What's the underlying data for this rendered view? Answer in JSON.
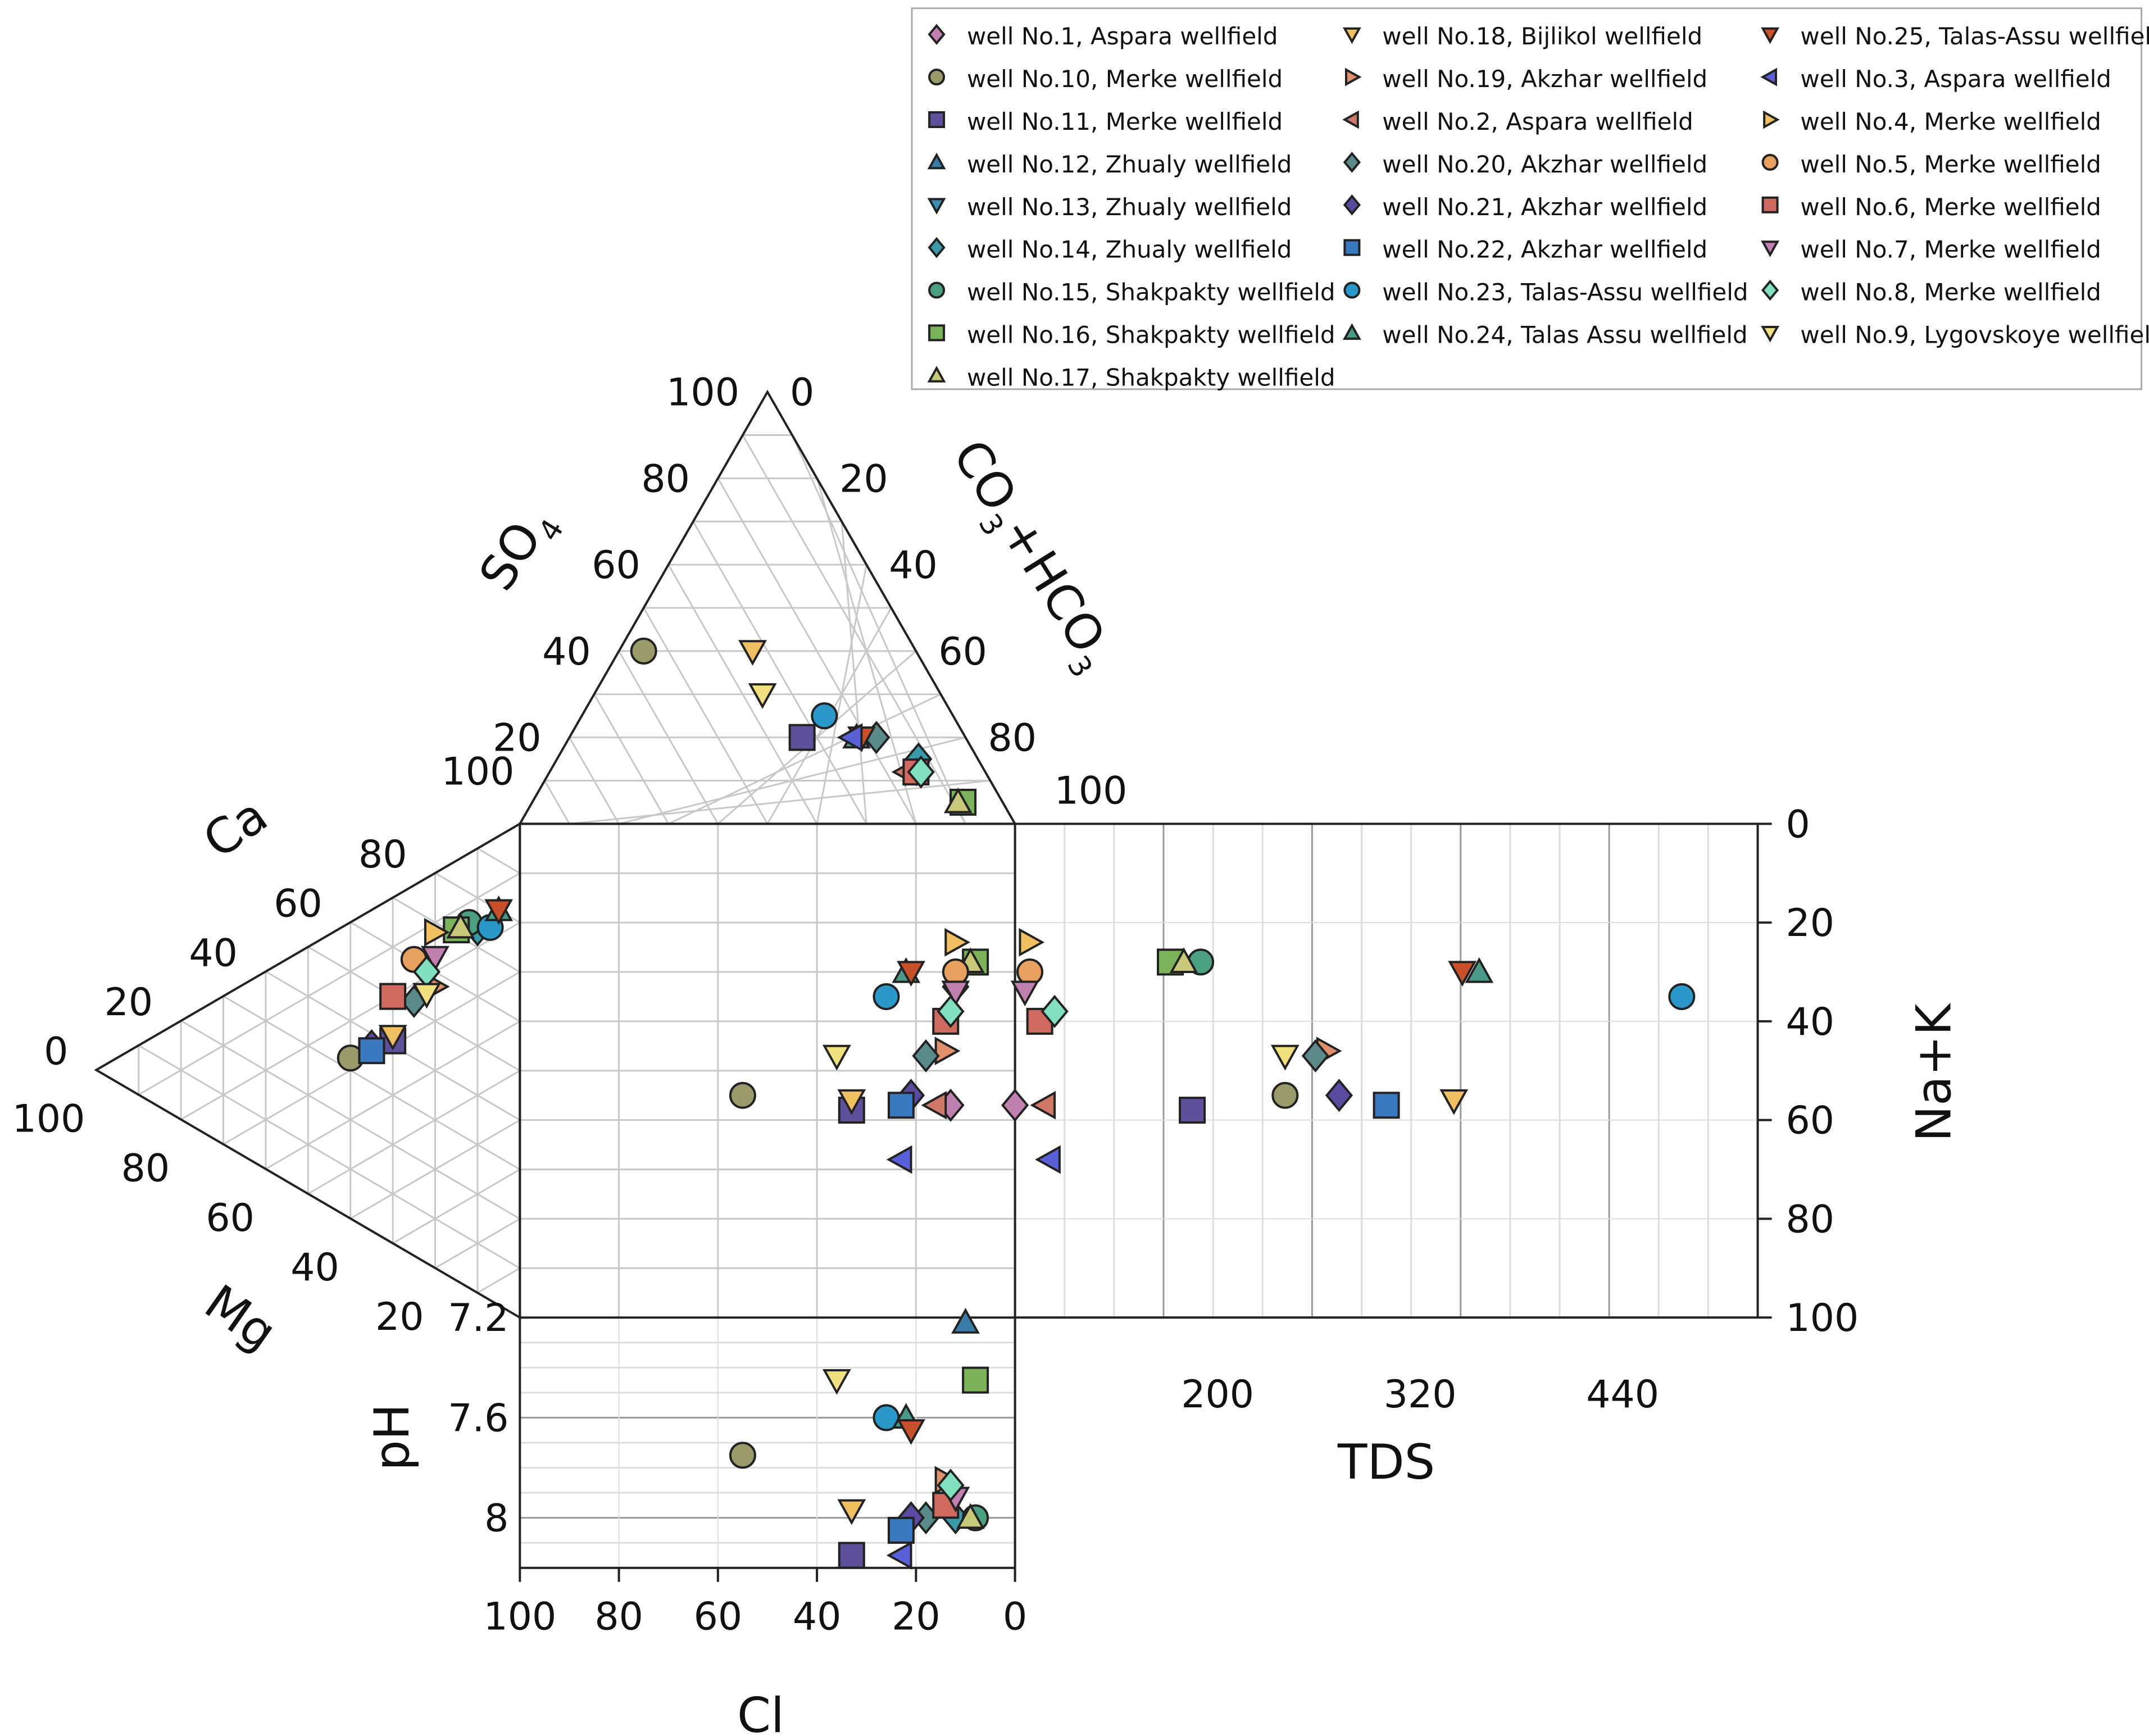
{
  "chart_data": {
    "type": "scatter",
    "subtype": "durov-diagram",
    "title": "",
    "anion_triangle": {
      "axes": [
        "SO4",
        "CO3+HCO3",
        "Cl"
      ],
      "label_so4_main": "SO",
      "label_so4_sub": "4",
      "label_co3_main": "CO",
      "label_co3_sub1": "3",
      "label_co3_mid": "+HCO",
      "label_co3_sub2": "3",
      "so4_ticks": [
        "100",
        "80",
        "60",
        "40",
        "20"
      ],
      "co3_ticks": [
        "0",
        "20",
        "40",
        "60",
        "80",
        "100"
      ]
    },
    "cation_triangle": {
      "axes": [
        "Ca",
        "Mg",
        "Na+K"
      ],
      "label_ca": "Ca",
      "label_mg": "Mg",
      "ca_ticks": [
        "100",
        "80",
        "60",
        "40",
        "20",
        "0"
      ],
      "mg_ticks": [
        "100",
        "80",
        "60",
        "40",
        "20"
      ]
    },
    "cl_axis": {
      "label": "Cl",
      "ticks": [
        "100",
        "80",
        "60",
        "40",
        "20",
        "0"
      ]
    },
    "nak_axis": {
      "label": "Na+K",
      "ticks": [
        "0",
        "20",
        "40",
        "60",
        "80",
        "100"
      ]
    },
    "tds_axis": {
      "label": "TDS",
      "ticks": [
        "200",
        "320",
        "440"
      ],
      "range": [
        80,
        520
      ]
    },
    "ph_axis": {
      "label": "pH",
      "ticks": [
        "7.2",
        "7.6",
        "8"
      ],
      "range": [
        7.2,
        8.2
      ]
    },
    "series": [
      {
        "name": "well No.1, Aspara wellfield",
        "marker": "diamond",
        "color": "#c080b0",
        "so4": null,
        "cl": 13,
        "mg": null,
        "nak": 57,
        "tds": null,
        "ph": null,
        "extra_cl": 0,
        "extra_nak": 57
      },
      {
        "name": "well No.10, Merke wellfield",
        "marker": "circle",
        "color": "#9a9a6a",
        "so4": 40,
        "cl": 55,
        "mg": 40,
        "nak": 55,
        "tds": 240,
        "ph": 7.75
      },
      {
        "name": "well No.11, Merke wellfield",
        "marker": "square",
        "color": "#5f509c",
        "so4": 20,
        "cl": 33,
        "mg": 30,
        "nak": 58,
        "tds": 185,
        "ph": 8.15
      },
      {
        "name": "well No.12, Zhualy wellfield",
        "marker": "triangle-up",
        "color": "#3a7ca8",
        "so4": null,
        "cl": 10,
        "mg": null,
        "nak": null,
        "tds": null,
        "ph": 7.22
      },
      {
        "name": "well No.13, Zhualy wellfield",
        "marker": "triangle-down",
        "color": "#3a8fb5",
        "so4": null,
        "cl": null,
        "mg": null,
        "nak": null,
        "tds": null,
        "ph": null
      },
      {
        "name": "well No.14, Zhualy wellfield",
        "marker": "diamond",
        "color": "#3a9aa8",
        "so4": 15,
        "cl": 12,
        "mg": 10,
        "nak": 33,
        "tds": null,
        "ph": 8.0
      },
      {
        "name": "well No.15, Shakpakty wellfield",
        "marker": "circle",
        "color": "#4aa080",
        "so4": 5,
        "cl": 8,
        "mg": 12,
        "nak": 28,
        "tds": 190,
        "ph": 8.0
      },
      {
        "name": "well No.16, Shakpakty wellfield",
        "marker": "square",
        "color": "#7cb35a",
        "so4": 5,
        "cl": 8,
        "mg": 15,
        "nak": 28,
        "tds": 172,
        "ph": 7.45
      },
      {
        "name": "well No.17, Shakpakty wellfield",
        "marker": "triangle-up",
        "color": "#c8c87a",
        "so4": 5,
        "cl": 9,
        "mg": 14,
        "nak": 28,
        "tds": 180,
        "ph": 8.0
      },
      {
        "name": "well No.18, Bijlikol wellfield",
        "marker": "triangle-down",
        "color": "#f0c060",
        "so4": 40,
        "cl": 33,
        "mg": 30,
        "nak": 56,
        "tds": 340,
        "ph": 7.97
      },
      {
        "name": "well No.19, Akzhar wellfield",
        "marker": "triangle-right",
        "color": "#e0906a",
        "so4": 12,
        "cl": 14,
        "mg": 20,
        "nak": 46,
        "tds": 265,
        "ph": 7.85
      },
      {
        "name": "well No.2, Aspara wellfield",
        "marker": "triangle-left",
        "color": "#d07868",
        "so4": 12,
        "cl": 16,
        "mg": null,
        "nak": 57,
        "tds": null,
        "ph": null,
        "extra_cl": -6,
        "extra_nak": 57
      },
      {
        "name": "well No.20, Akzhar wellfield",
        "marker": "diamond",
        "color": "#5a8a8a",
        "so4": 20,
        "cl": 18,
        "mg": 25,
        "nak": 47,
        "tds": 258,
        "ph": 8.0
      },
      {
        "name": "well No.21, Akzhar wellfield",
        "marker": "diamond",
        "color": "#5a4aa0",
        "so4": null,
        "cl": 21,
        "mg": 35,
        "nak": 55,
        "tds": 272,
        "ph": 8.0
      },
      {
        "name": "well No.22, Akzhar wellfield",
        "marker": "square",
        "color": "#3a78c0",
        "so4": null,
        "cl": 23,
        "mg": 35,
        "nak": 57,
        "tds": 300,
        "ph": 8.05
      },
      {
        "name": "well No.23, Talas-Assu wellfield",
        "marker": "circle",
        "color": "#2a98c8",
        "so4": 25,
        "cl": 26,
        "mg": 7,
        "nak": 35,
        "tds": 475,
        "ph": 7.6
      },
      {
        "name": "well No.24, Talas Assu wellfield",
        "marker": "triangle-up",
        "color": "#4a9a8a",
        "so4": 20,
        "cl": 22,
        "mg": 5,
        "nak": 30,
        "tds": 355,
        "ph": 7.6
      },
      {
        "name": "well No.25, Talas-Assu wellfield",
        "marker": "triangle-down",
        "color": "#c8502a",
        "so4": 20,
        "cl": 21,
        "mg": 5,
        "nak": 30,
        "tds": 345,
        "ph": 7.65
      },
      {
        "name": "well No.3, Aspara wellfield",
        "marker": "triangle-left",
        "color": "#5a60d8",
        "so4": 20,
        "cl": 23,
        "mg": 40,
        "nak": 68,
        "tds": null,
        "ph": 8.15,
        "extra_cl": -7,
        "extra_nak": 68
      },
      {
        "name": "well No.4, Merke wellfield",
        "marker": "triangle-right",
        "color": "#f0c060",
        "so4": null,
        "cl": 12,
        "mg": 20,
        "nak": 24,
        "tds": null,
        "ph": null,
        "extra_cl": -3,
        "extra_nak": 24
      },
      {
        "name": "well No.5, Merke wellfield",
        "marker": "circle",
        "color": "#e8a060",
        "so4": null,
        "cl": 12,
        "mg": 25,
        "nak": 30,
        "tds": null,
        "ph": null,
        "extra_cl": -3,
        "extra_nak": 30
      },
      {
        "name": "well No.6, Merke wellfield",
        "marker": "square",
        "color": "#d06a60",
        "so4": 12,
        "cl": 14,
        "mg": 30,
        "nak": 40,
        "tds": null,
        "ph": 7.95,
        "extra_cl": -5,
        "extra_nak": 40
      },
      {
        "name": "well No.7, Merke wellfield",
        "marker": "triangle-down",
        "color": "#c080b0",
        "so4": null,
        "cl": 12,
        "mg": 20,
        "nak": 34,
        "tds": null,
        "ph": 7.92,
        "extra_cl": -2,
        "extra_nak": 34
      },
      {
        "name": "well No.8, Merke wellfield",
        "marker": "diamond",
        "color": "#80e0c0",
        "so4": 12,
        "cl": 13,
        "mg": 22,
        "nak": 38,
        "tds": null,
        "ph": 7.87,
        "extra_cl": -8,
        "extra_nak": 38
      },
      {
        "name": "well No.9, Lygovskoye wellfield",
        "marker": "triangle-down",
        "color": "#f0e080",
        "so4": 30,
        "cl": 36,
        "mg": 22,
        "nak": 47,
        "tds": 240,
        "ph": 7.45
      }
    ]
  }
}
